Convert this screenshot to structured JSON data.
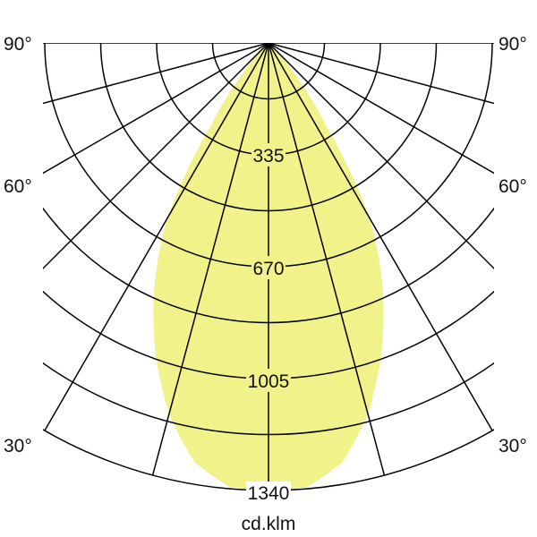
{
  "chart_data": {
    "type": "polar",
    "unit_label": "cd.klm",
    "radial_ticks": [
      335,
      670,
      1005,
      1340
    ],
    "radial_max": 1340,
    "minor_ring_step": 167.5,
    "angle_labels": [
      "90°",
      "60°",
      "30°"
    ],
    "angle_grid_step_deg": 15,
    "fill_color": "#f2f28a",
    "grid_color": "#000000",
    "series": [
      {
        "angles_deg": [
          0,
          5,
          10,
          15,
          20,
          25,
          30,
          35,
          40,
          45,
          50,
          60,
          90
        ],
        "values": [
          1340,
          1335,
          1275,
          1150,
          990,
          810,
          610,
          300,
          120,
          40,
          10,
          0,
          0
        ]
      }
    ]
  }
}
